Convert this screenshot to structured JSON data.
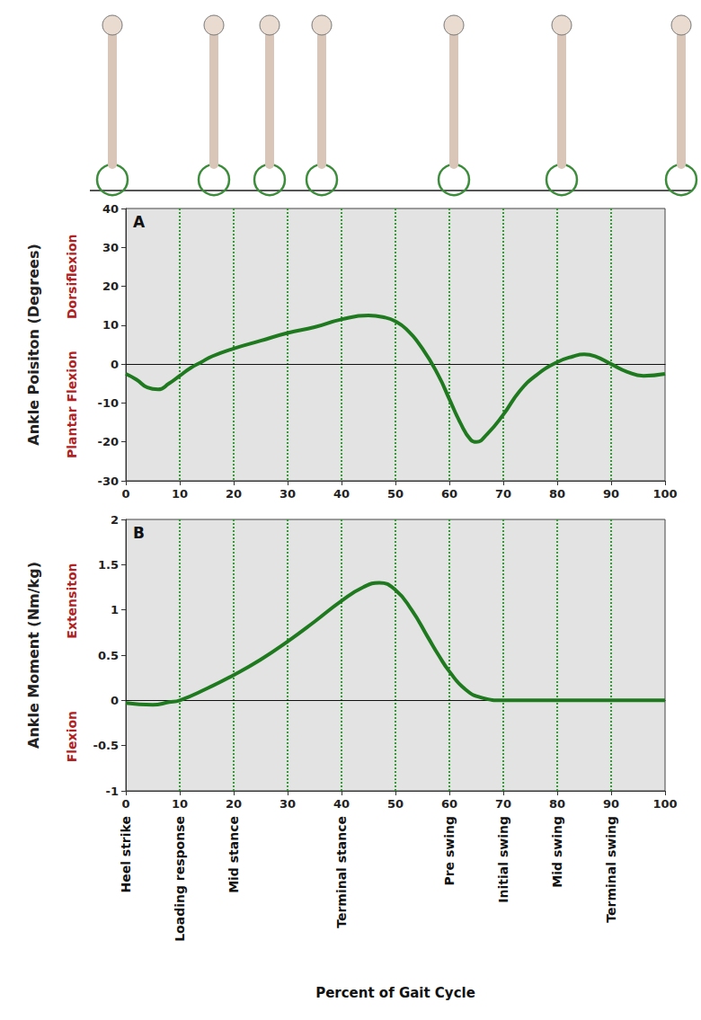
{
  "chart_data": [
    {
      "type": "line",
      "panel": "A",
      "ylabel": "Ankle Poisiton (Degrees)",
      "annotations": [
        "Dorsiflexion",
        "Plantar Flexion"
      ],
      "x": [
        0,
        2,
        4,
        6,
        8,
        10,
        12,
        14,
        16,
        20,
        25,
        30,
        35,
        40,
        45,
        48,
        50,
        52,
        55,
        58,
        60,
        62,
        64,
        65,
        67,
        70,
        73,
        76,
        80,
        83,
        85,
        87,
        90,
        93,
        96,
        100
      ],
      "series": [
        {
          "color": "#1f7a1f",
          "values": [
            -2.5,
            -4,
            -6,
            -6.5,
            -5,
            -3,
            -1,
            0.5,
            2,
            4,
            6,
            8,
            9.5,
            11.5,
            12.5,
            12,
            11,
            9,
            4,
            -3,
            -9,
            -15,
            -19.5,
            -20,
            -18,
            -13,
            -7,
            -3,
            0.5,
            2,
            2.5,
            2,
            0,
            -2,
            -3,
            -2.5
          ]
        }
      ],
      "xlim": [
        0,
        100
      ],
      "xticks": [
        0,
        10,
        20,
        30,
        40,
        50,
        60,
        70,
        80,
        90,
        100
      ],
      "ylim": [
        -30,
        40
      ],
      "yticks": [
        -30,
        -20,
        -10,
        0,
        10,
        20,
        30,
        40
      ],
      "grid": true
    },
    {
      "type": "line",
      "panel": "B",
      "ylabel": "Ankle Moment (Nm/kg)",
      "annotations": [
        "Extensiton",
        "Flexion"
      ],
      "xlabel": "Percent of Gait Cycle",
      "phases": [
        {
          "x": 0,
          "label": "Heel strike"
        },
        {
          "x": 10,
          "label": "Loading response"
        },
        {
          "x": 20,
          "label": "Mid stance"
        },
        {
          "x": 40,
          "label": "Terminal stance"
        },
        {
          "x": 60,
          "label": "Pre swing"
        },
        {
          "x": 70,
          "label": "Initial swing"
        },
        {
          "x": 80,
          "label": "Mid swing"
        },
        {
          "x": 90,
          "label": "Terminal swing"
        }
      ],
      "x": [
        0,
        5,
        8,
        10,
        15,
        20,
        25,
        30,
        35,
        40,
        44,
        47,
        50,
        53,
        56,
        58,
        60,
        63,
        66,
        70,
        80,
        90,
        100
      ],
      "series": [
        {
          "color": "#1f7a1f",
          "values": [
            -0.03,
            -0.05,
            -0.02,
            0,
            0.13,
            0.28,
            0.45,
            0.65,
            0.87,
            1.1,
            1.25,
            1.3,
            1.22,
            1.0,
            0.7,
            0.5,
            0.32,
            0.12,
            0.03,
            0,
            0,
            0,
            0
          ]
        }
      ],
      "xlim": [
        0,
        100
      ],
      "xticks": [
        0,
        10,
        20,
        30,
        40,
        50,
        60,
        70,
        80,
        90,
        100
      ],
      "ylim": [
        -1,
        2
      ],
      "yticks": [
        -1,
        -0.5,
        0,
        0.5,
        1,
        1.5,
        2
      ],
      "grid": true
    }
  ]
}
